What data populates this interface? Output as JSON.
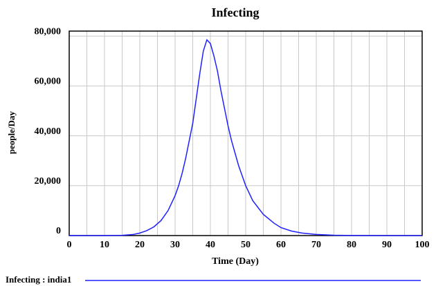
{
  "chart_data": {
    "type": "line",
    "title": "Infecting",
    "xlabel": "Time (Day)",
    "ylabel": "people/Day",
    "x": [
      0,
      5,
      10,
      15,
      18,
      20,
      22,
      24,
      26,
      28,
      30,
      31,
      32,
      33,
      34,
      35,
      36,
      37,
      38,
      39,
      40,
      41,
      42,
      43,
      44,
      45,
      46,
      47,
      48,
      50,
      52,
      55,
      58,
      60,
      63,
      66,
      70,
      75,
      80,
      90,
      100
    ],
    "series": [
      {
        "name": "Infecting : india1",
        "color": "#1f1fff",
        "values": [
          0,
          0,
          0,
          100,
          400,
          1000,
          2000,
          3500,
          6000,
          10000,
          16000,
          20000,
          25000,
          31000,
          38000,
          45000,
          55000,
          65000,
          74000,
          78500,
          77000,
          72000,
          66000,
          58000,
          51000,
          44000,
          38000,
          33000,
          28000,
          20000,
          14000,
          8500,
          5000,
          3200,
          1800,
          1000,
          450,
          150,
          50,
          10,
          0
        ]
      }
    ],
    "xlim": [
      0,
      100
    ],
    "xticks": [
      0,
      10,
      20,
      30,
      40,
      50,
      60,
      70,
      80,
      90,
      100
    ],
    "minor_xticks": [
      5,
      15,
      25,
      35,
      45,
      55,
      65,
      75,
      85,
      95
    ],
    "ylim": [
      0,
      82000
    ],
    "yticks": [
      0,
      {
        "value": 20000,
        "label": "20,000"
      },
      {
        "value": 40000,
        "label": "40,000"
      },
      {
        "value": 60000,
        "label": "60,000"
      },
      {
        "value": 80000,
        "label": "80,000"
      }
    ],
    "grid": true
  }
}
